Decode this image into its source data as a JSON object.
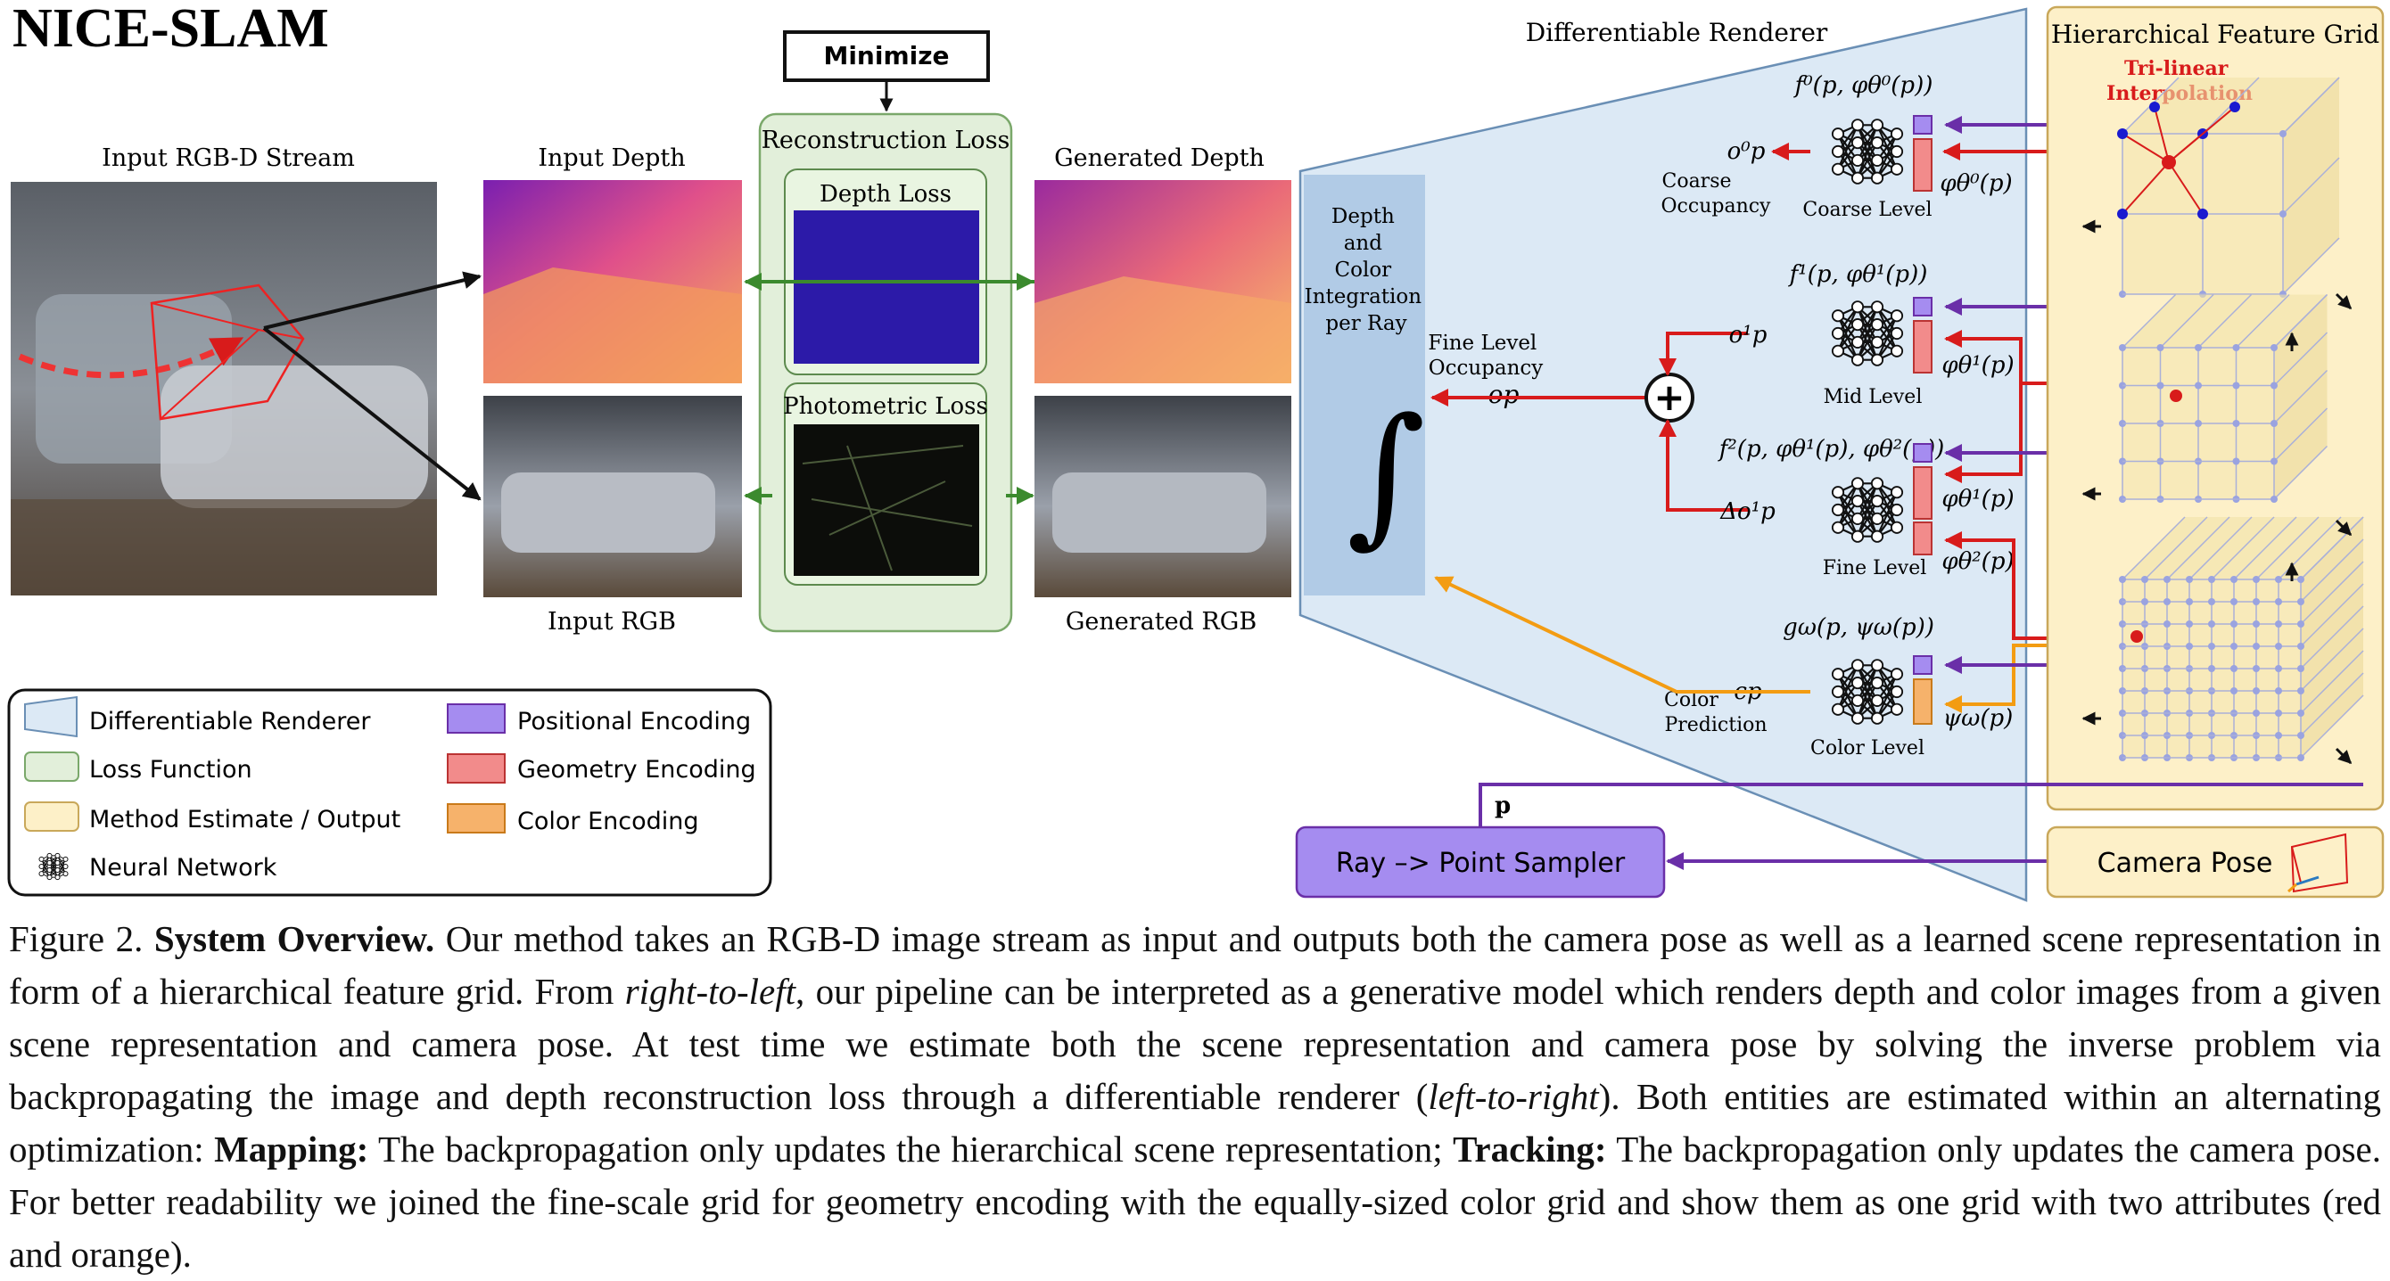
{
  "title": "NICE-SLAM",
  "minimize_label": "Minimize",
  "input_stream_label": "Input RGB-D Stream",
  "input_depth_label": "Input Depth",
  "input_rgb_label": "Input RGB",
  "reconstruction_loss_label": "Reconstruction Loss",
  "depth_loss_label": "Depth Loss",
  "photometric_loss_label": "Photometric Loss",
  "generated_depth_label": "Generated Depth",
  "generated_rgb_label": "Generated RGB",
  "renderer_label": "Differentiable Renderer",
  "integration_label": [
    "Depth",
    "and",
    "Color",
    "Integration",
    "per Ray"
  ],
  "integral_symbol": "∫",
  "fine_occupancy_label": [
    "Fine Level",
    "Occupancy"
  ],
  "coarse_occupancy_label": [
    "Coarse",
    "Occupancy"
  ],
  "color_prediction_label": [
    "Color",
    "Prediction"
  ],
  "levels": {
    "coarse": {
      "label": "Coarse Level",
      "func": "f⁰(p, φθ⁰(p))",
      "out": "o⁰p",
      "enc": "φθ⁰(p)"
    },
    "mid": {
      "label": "Mid Level",
      "func": "f¹(p, φθ¹(p))",
      "out": "o¹p",
      "enc": "φθ¹(p)"
    },
    "fine": {
      "label": "Fine Level",
      "func": "f²(p, φθ¹(p), φθ²(p))",
      "out": "Δo¹p",
      "enc1": "φθ¹(p)",
      "enc2": "φθ²(p)"
    },
    "color": {
      "label": "Color Level",
      "func": "gω(p, ψω(p))",
      "out": "cp",
      "enc": "ψω(p)"
    }
  },
  "fused_occupancy": "op",
  "plus_symbol": "+",
  "hfg_label": "Hierarchical Feature Grid",
  "trilinear_label": [
    "Tri-linear",
    "Interpolation"
  ],
  "point_label": "p",
  "ray_sampler_label": "Ray –> Point Sampler",
  "camera_pose_label": "Camera Pose",
  "legend": [
    {
      "label": "Differentiable Renderer"
    },
    {
      "label": "Loss Function"
    },
    {
      "label": "Method Estimate / Output"
    },
    {
      "label": "Neural Network"
    },
    {
      "label": "Positional Encoding"
    },
    {
      "label": "Geometry Encoding"
    },
    {
      "label": "Color Encoding"
    }
  ],
  "caption": {
    "fig": "Figure 2. ",
    "head": "System Overview.",
    "t1": " Our method takes an RGB-D image stream as input and outputs both the camera pose as well as a learned scene representation in form of a hierarchical feature grid. From ",
    "rtl": "right-to-left",
    "t2": ", our pipeline can be interpreted as a generative model which renders depth and color images from a given scene representation and camera pose. At test time we estimate both the scene representation and camera pose by solving the inverse problem via backpropagating the image and depth reconstruction loss through a differentiable renderer (",
    "ltr": "left-to-right",
    "t3": "). Both entities are estimated within an alternating optimization: ",
    "mapping": "Mapping:",
    "t4": " The backpropagation only updates the hierarchical scene representation; ",
    "tracking": "Tracking:",
    "t5": " The backpropagation only updates the camera pose. For better readability we joined the fine-scale grid for geometry encoding with the equally-sized color grid and show them as one grid with two attributes (red and orange)."
  },
  "colors": {
    "renderer_fill": "#dce9f5",
    "loss_fill": "#e2efda",
    "output_fill": "#fdf0c8",
    "positional": "#a58cf0",
    "geometry": "#f28b8b",
    "color_enc": "#f6b26b",
    "red_arrow": "#d81b1b",
    "purple_arrow": "#6a2fa8",
    "orange_arrow": "#f39c12",
    "green_arrow": "#3b8a2e"
  }
}
